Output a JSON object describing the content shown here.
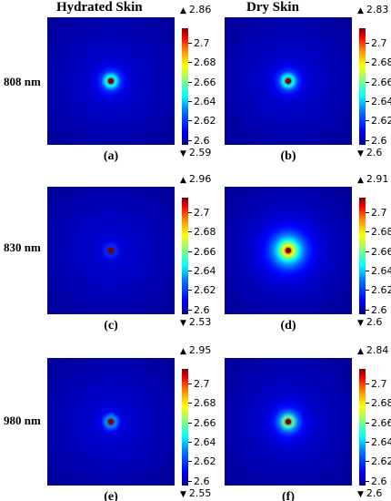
{
  "figure": {
    "col_titles": [
      "Hydrated Skin",
      "Dry Skin"
    ],
    "row_labels": [
      "808 nm",
      "830 nm",
      "980 nm"
    ],
    "colorbar_ticks": [
      "2.6",
      "2.62",
      "2.64",
      "2.66",
      "2.68",
      "2.7"
    ],
    "colorbar_tick_values": [
      2.6,
      2.62,
      2.64,
      2.66,
      2.68,
      2.7
    ],
    "colorbar_range": [
      2.595,
      2.715
    ],
    "panels": [
      {
        "label": "(a)",
        "max": "2.86",
        "min": "2.59",
        "spot_spread": 0.55
      },
      {
        "label": "(b)",
        "max": "2.83",
        "min": "2.6",
        "spot_spread": 0.55
      },
      {
        "label": "(c)",
        "max": "2.96",
        "min": "2.53",
        "spot_spread": 0.12
      },
      {
        "label": "(d)",
        "max": "2.91",
        "min": "2.6",
        "spot_spread": 1.4
      },
      {
        "label": "(e)",
        "max": "2.95",
        "min": "2.55",
        "spot_spread": 0.3
      },
      {
        "label": "(f)",
        "max": "2.84",
        "min": "2.6",
        "spot_spread": 0.75
      }
    ],
    "colors": {
      "colormap": "jet",
      "background": "#ffffff"
    }
  }
}
